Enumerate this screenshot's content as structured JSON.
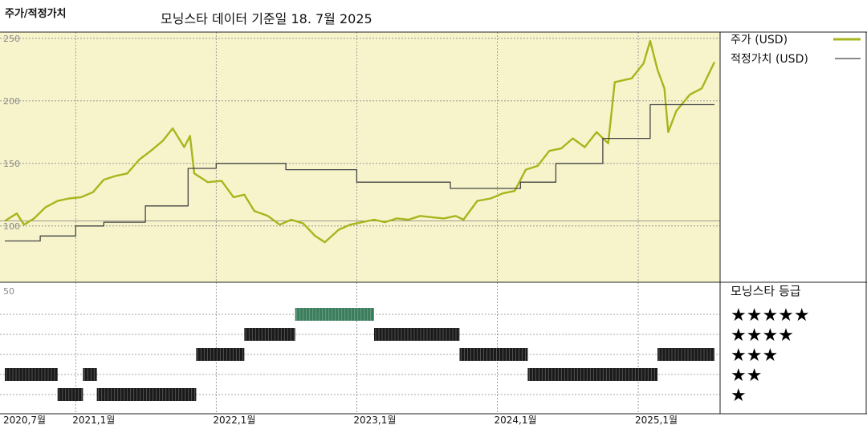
{
  "header": {
    "title": "주가/적정가치",
    "subtitle": "모닝스타 데이터 기준일 18. 7월 2025"
  },
  "chart_data": [
    {
      "type": "line",
      "xlim": [
        "2020-07-01",
        "2025-07-18"
      ],
      "ylim": [
        55,
        255
      ],
      "yticks": [
        100,
        150,
        200,
        250
      ],
      "grid": true,
      "legend_position": "top-right",
      "series": [
        {
          "name": "주가 (USD)",
          "color": "#a8b51c",
          "points": [
            [
              "2020-07-01",
              104
            ],
            [
              "2020-08-01",
              110
            ],
            [
              "2020-08-20",
              101
            ],
            [
              "2020-09-15",
              106
            ],
            [
              "2020-10-15",
              115
            ],
            [
              "2020-11-15",
              120
            ],
            [
              "2020-12-15",
              122
            ],
            [
              "2021-01-15",
              123
            ],
            [
              "2021-02-15",
              127
            ],
            [
              "2021-03-15",
              137
            ],
            [
              "2021-04-15",
              140
            ],
            [
              "2021-05-15",
              142
            ],
            [
              "2021-06-15",
              153
            ],
            [
              "2021-07-15",
              160
            ],
            [
              "2021-08-15",
              168
            ],
            [
              "2021-09-10",
              178
            ],
            [
              "2021-10-10",
              163
            ],
            [
              "2021-10-25",
              172
            ],
            [
              "2021-11-05",
              142
            ],
            [
              "2021-12-10",
              135
            ],
            [
              "2022-01-15",
              136
            ],
            [
              "2022-02-15",
              123
            ],
            [
              "2022-03-15",
              125
            ],
            [
              "2022-04-10",
              112
            ],
            [
              "2022-05-15",
              108
            ],
            [
              "2022-06-15",
              101
            ],
            [
              "2022-07-15",
              105
            ],
            [
              "2022-08-15",
              102
            ],
            [
              "2022-09-15",
              92
            ],
            [
              "2022-10-10",
              87
            ],
            [
              "2022-11-15",
              97
            ],
            [
              "2022-12-15",
              101
            ],
            [
              "2023-01-15",
              103
            ],
            [
              "2023-02-15",
              105
            ],
            [
              "2023-03-15",
              103
            ],
            [
              "2023-04-15",
              106
            ],
            [
              "2023-05-15",
              105
            ],
            [
              "2023-06-15",
              108
            ],
            [
              "2023-07-15",
              107
            ],
            [
              "2023-08-15",
              106
            ],
            [
              "2023-09-15",
              108
            ],
            [
              "2023-10-05",
              105
            ],
            [
              "2023-11-10",
              120
            ],
            [
              "2023-12-15",
              122
            ],
            [
              "2024-01-15",
              126
            ],
            [
              "2024-02-15",
              128
            ],
            [
              "2024-03-15",
              145
            ],
            [
              "2024-04-15",
              148
            ],
            [
              "2024-05-15",
              160
            ],
            [
              "2024-06-15",
              162
            ],
            [
              "2024-07-15",
              170
            ],
            [
              "2024-08-15",
              163
            ],
            [
              "2024-09-15",
              175
            ],
            [
              "2024-10-15",
              166
            ],
            [
              "2024-11-01",
              215
            ],
            [
              "2024-12-15",
              218
            ],
            [
              "2025-01-15",
              230
            ],
            [
              "2025-02-01",
              248
            ],
            [
              "2025-02-20",
              225
            ],
            [
              "2025-03-10",
              210
            ],
            [
              "2025-03-20",
              175
            ],
            [
              "2025-04-10",
              192
            ],
            [
              "2025-05-15",
              205
            ],
            [
              "2025-06-15",
              210
            ],
            [
              "2025-07-18",
              231
            ]
          ]
        },
        {
          "name": "적정가치 (USD)",
          "color": "#444444",
          "points": [
            [
              "2020-07-01",
              88
            ],
            [
              "2020-10-01",
              88
            ],
            [
              "2020-10-01",
              92
            ],
            [
              "2021-01-01",
              92
            ],
            [
              "2021-01-01",
              100
            ],
            [
              "2021-03-15",
              100
            ],
            [
              "2021-03-15",
              103
            ],
            [
              "2021-07-01",
              103
            ],
            [
              "2021-07-01",
              116
            ],
            [
              "2021-10-20",
              116
            ],
            [
              "2021-10-20",
              146
            ],
            [
              "2022-01-01",
              146
            ],
            [
              "2022-01-01",
              150
            ],
            [
              "2022-07-01",
              150
            ],
            [
              "2022-07-01",
              145
            ],
            [
              "2023-01-01",
              145
            ],
            [
              "2023-01-01",
              135
            ],
            [
              "2023-09-01",
              135
            ],
            [
              "2023-09-01",
              130
            ],
            [
              "2024-03-01",
              130
            ],
            [
              "2024-03-01",
              135
            ],
            [
              "2024-06-01",
              135
            ],
            [
              "2024-06-01",
              150
            ],
            [
              "2024-10-01",
              150
            ],
            [
              "2024-10-01",
              170
            ],
            [
              "2025-02-01",
              170
            ],
            [
              "2025-02-01",
              197
            ],
            [
              "2025-07-18",
              197
            ]
          ]
        }
      ]
    },
    {
      "type": "bar",
      "title": "모닝스타 등급",
      "ylim_label": "50",
      "levels": [
        "★★★★★",
        "★★★★",
        "★★★",
        "★★",
        "★"
      ],
      "segments": [
        {
          "stars": 2,
          "start": "2020-07-01",
          "end": "2020-11-15"
        },
        {
          "stars": 1,
          "start": "2020-11-15",
          "end": "2021-01-20"
        },
        {
          "stars": 2,
          "start": "2021-01-20",
          "end": "2021-02-25"
        },
        {
          "stars": 1,
          "start": "2021-02-25",
          "end": "2021-11-10"
        },
        {
          "stars": 3,
          "start": "2021-11-10",
          "end": "2022-03-15"
        },
        {
          "stars": 4,
          "start": "2022-03-15",
          "end": "2022-07-25"
        },
        {
          "stars": 5,
          "start": "2022-07-25",
          "end": "2023-02-15"
        },
        {
          "stars": 4,
          "start": "2023-02-15",
          "end": "2023-09-25"
        },
        {
          "stars": 3,
          "start": "2023-09-25",
          "end": "2024-03-20"
        },
        {
          "stars": 2,
          "start": "2024-03-20",
          "end": "2025-02-20"
        },
        {
          "stars": 3,
          "start": "2025-02-20",
          "end": "2025-07-18"
        }
      ],
      "colors": {
        "5": "#3a7d5c",
        "default": "#1a1a1a"
      }
    }
  ],
  "x_ticks": [
    "2020,7월",
    "2021,1월",
    "2022,1월",
    "2023,1월",
    "2024,1월",
    "2025,1월"
  ],
  "x_tick_dates": [
    "2020-07-01",
    "2021-01-01",
    "2022-01-01",
    "2023-01-01",
    "2024-01-01",
    "2025-01-01"
  ],
  "colors": {
    "plot_background": "#f7f4cc",
    "price": "#a8b51c",
    "fair_value": "#444444"
  }
}
